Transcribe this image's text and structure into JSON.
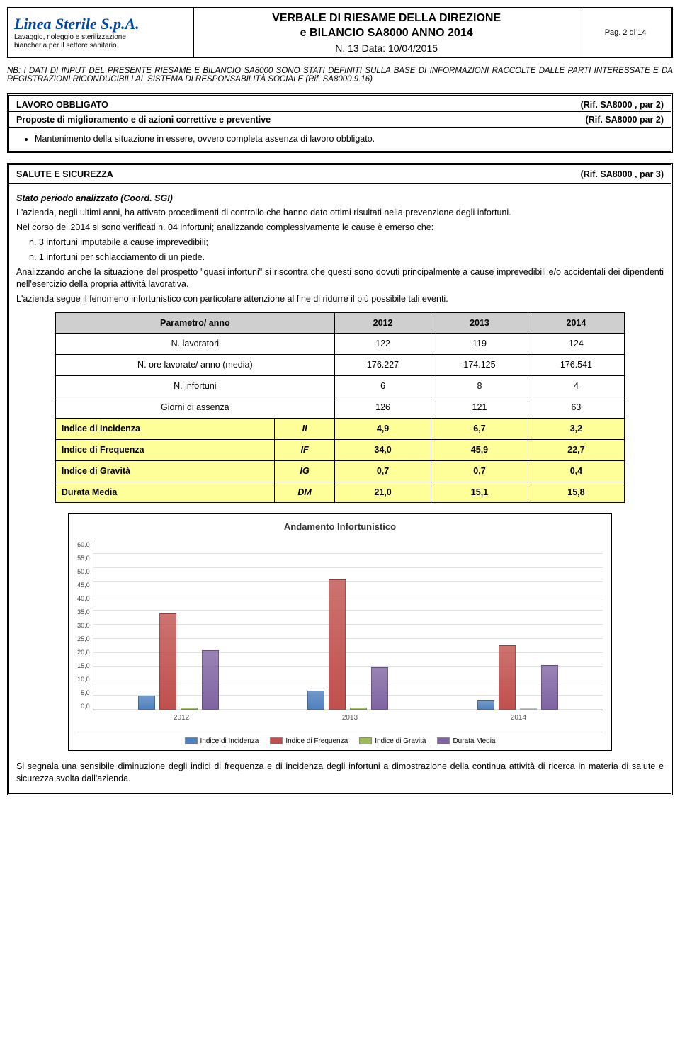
{
  "header": {
    "brand": "Linea Sterile S.p.A.",
    "brand_sub1": "Lavaggio, noleggio e sterilizzazione",
    "brand_sub2": "biancheria per il settore sanitario.",
    "title_l1": "VERBALE DI RIESAME DELLA DIREZIONE",
    "title_l2": "e BILANCIO SA8000 ANNO 2014",
    "subtitle": "N.   13   Data: 10/04/2015",
    "page": "Pag. 2 di 14"
  },
  "note": "NB: I DATI DI INPUT DEL PRESENTE RIESAME E BILANCIO SA8000 SONO STATI DEFINITI SULLA BASE DI INFORMAZIONI RACCOLTE DALLE PARTI INTERESSATE E DA REGISTRAZIONI RICONDUCIBILI AL SISTEMA DI RESPONSABILITÀ SOCIALE (Rif. SA8000 9.16)",
  "box1": {
    "title": "LAVORO OBBLIGATO",
    "ref": "(Rif. SA8000 , par 2)",
    "sub_title": "Proposte di miglioramento e di azioni correttive e preventive",
    "sub_ref": "(Rif. SA8000 par 2)",
    "bullet": "Mantenimento della situazione in essere, ovvero completa assenza di lavoro obbligato."
  },
  "box2": {
    "title": "SALUTE E SICUREZZA",
    "ref": "(Rif. SA8000 , par 3)",
    "stato_label": "Stato periodo analizzato (Coord. SGI)",
    "p1": "L'azienda, negli ultimi anni, ha attivato procedimenti di controllo che hanno dato ottimi risultati nella prevenzione degli infortuni.",
    "p2": "Nel corso del 2014 si sono verificati n. 04 infortuni; analizzando complessivamente le cause è emerso che:",
    "li1": "n. 3 infortuni imputabile a cause imprevedibili;",
    "li2": "n. 1 infortuni per schiacciamento di un piede.",
    "p3": "Analizzando anche la situazione del prospetto \"quasi infortuni\" si riscontra che questi sono dovuti principalmente a cause imprevedibili e/o accidentali dei dipendenti nell'esercizio della propria attività lavorativa.",
    "p4": "L'azienda segue il fenomeno infortunistico con particolare attenzione al fine di ridurre il più possibile tali eventi."
  },
  "table": {
    "headers": [
      "Parametro/ anno",
      "2012",
      "2013",
      "2014"
    ],
    "rows": [
      {
        "label": "N. lavoratori",
        "code": "",
        "v": [
          "122",
          "119",
          "124"
        ],
        "style": "plain"
      },
      {
        "label": "N. ore lavorate/ anno (media)",
        "code": "",
        "v": [
          "176.227",
          "174.125",
          "176.541"
        ],
        "style": "plain"
      },
      {
        "label": "N. infortuni",
        "code": "",
        "v": [
          "6",
          "8",
          "4"
        ],
        "style": "plain"
      },
      {
        "label": "Giorni di assenza",
        "code": "",
        "v": [
          "126",
          "121",
          "63"
        ],
        "style": "plain"
      },
      {
        "label": "Indice di Incidenza",
        "code": "II",
        "v": [
          "4,9",
          "6,7",
          "3,2"
        ],
        "style": "yellow"
      },
      {
        "label": "Indice di Frequenza",
        "code": "IF",
        "v": [
          "34,0",
          "45,9",
          "22,7"
        ],
        "style": "yellow"
      },
      {
        "label": "Indice di Gravità",
        "code": "IG",
        "v": [
          "0,7",
          "0,7",
          "0,4"
        ],
        "style": "yellow"
      },
      {
        "label": "Durata Media",
        "code": "DM",
        "v": [
          "21,0",
          "15,1",
          "15,8"
        ],
        "style": "yellow"
      }
    ]
  },
  "chart": {
    "title": "Andamento Infortunistico",
    "type": "bar",
    "ylim": [
      0,
      60
    ],
    "ytick_step": 5,
    "yticks": [
      "60,0",
      "55,0",
      "50,0",
      "45,0",
      "40,0",
      "35,0",
      "30,0",
      "25,0",
      "20,0",
      "15,0",
      "10,0",
      "5,0",
      "0,0"
    ],
    "categories": [
      "2012",
      "2013",
      "2014"
    ],
    "series": [
      {
        "name": "Indice di Incidenza",
        "color": "#4f81bd",
        "values": [
          4.9,
          6.7,
          3.2
        ]
      },
      {
        "name": "Indice di Frequenza",
        "color": "#c0504d",
        "values": [
          34.0,
          45.9,
          22.7
        ]
      },
      {
        "name": "Indice di Gravità",
        "color": "#9bbb59",
        "values": [
          0.7,
          0.7,
          0.4
        ]
      },
      {
        "name": "Durata Media",
        "color": "#8064a2",
        "values": [
          21.0,
          15.1,
          15.8
        ]
      }
    ],
    "background_color": "#ffffff",
    "grid_color": "#e0e0e0",
    "label_fontsize": 9,
    "title_fontsize": 13
  },
  "footer": "Si segnala una sensibile diminuzione degli indici di frequenza e di incidenza degli infortuni a dimostrazione della continua attività di ricerca in materia di salute e sicurezza svolta dall'azienda."
}
